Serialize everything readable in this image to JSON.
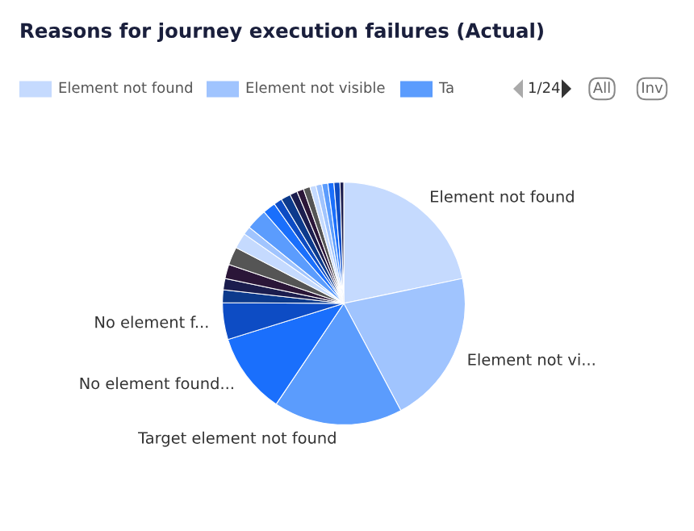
{
  "chart_data": {
    "type": "pie",
    "title": "Reasons for journey execution failures (Actual)",
    "categories": [
      "Element not found",
      "Element not vi...",
      "Target element not found",
      "No element found...",
      "No element f...",
      null,
      null,
      null,
      null,
      null,
      null,
      null,
      null,
      null,
      null,
      null,
      null,
      null,
      null,
      null,
      null,
      null,
      null,
      null
    ],
    "values": [
      21.7,
      20.5,
      17.2,
      10.8,
      4.9,
      1.7,
      1.5,
      1.9,
      2.4,
      2.1,
      1.1,
      2.8,
      1.7,
      1.1,
      1.3,
      1.0,
      0.9,
      0.9,
      0.8,
      0.8,
      0.8,
      0.8,
      0.8,
      0.5
    ],
    "colors": [
      "#c5dafe",
      "#a0c4fe",
      "#5b9cfd",
      "#1a6ffc",
      "#0d4cc4",
      "#0c3a8c",
      "#1b1d4e",
      "#2b1638",
      "#555555",
      "#c5dafe",
      "#a0c4fe",
      "#5b9cfd",
      "#1a6ffc",
      "#0d4cc4",
      "#0c3a8c",
      "#1b1d4e",
      "#2b1638",
      "#555555",
      "#c5dafe",
      "#a0c4fe",
      "#5b9cfd",
      "#1a6ffc",
      "#0d4cc4",
      "#1b1d4e"
    ],
    "annotations": [
      "Element not found",
      "Element not visible",
      "Ta",
      "1/24",
      "All",
      "Inv"
    ]
  }
}
